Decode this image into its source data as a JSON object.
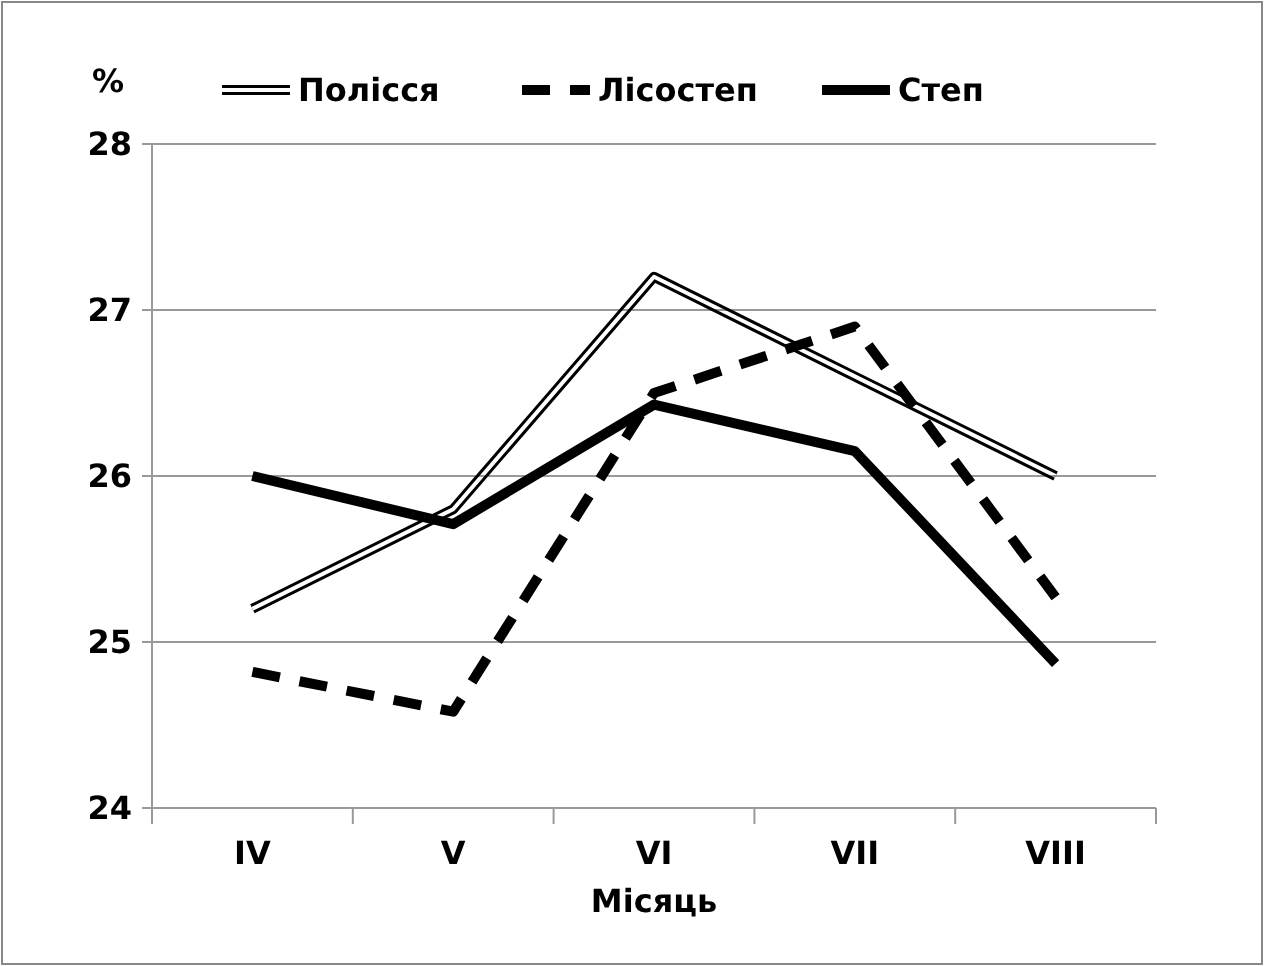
{
  "chart_data": {
    "type": "line",
    "ylabel": "%",
    "xlabel": "Місяць",
    "categories": [
      "IV",
      "V",
      "VI",
      "VII",
      "VIII"
    ],
    "series": [
      {
        "name": "Полісся",
        "color": "#000000",
        "values": [
          25.2,
          25.8,
          27.2,
          26.6,
          26.0
        ],
        "line_style": "solid"
      },
      {
        "name": "Лісостеп",
        "color": "#000000",
        "values": [
          24.82,
          24.58,
          26.5,
          26.9,
          25.27
        ],
        "line_style": "dashed"
      },
      {
        "name": "Степ",
        "color": "#000000",
        "values": [
          26.0,
          25.71,
          26.43,
          26.15,
          24.87
        ],
        "line_style": "solid"
      }
    ],
    "ylim": [
      24,
      28
    ],
    "yticks": [
      24,
      25,
      26,
      27,
      28
    ],
    "grid": "y",
    "legend": "top",
    "marker": "none"
  }
}
